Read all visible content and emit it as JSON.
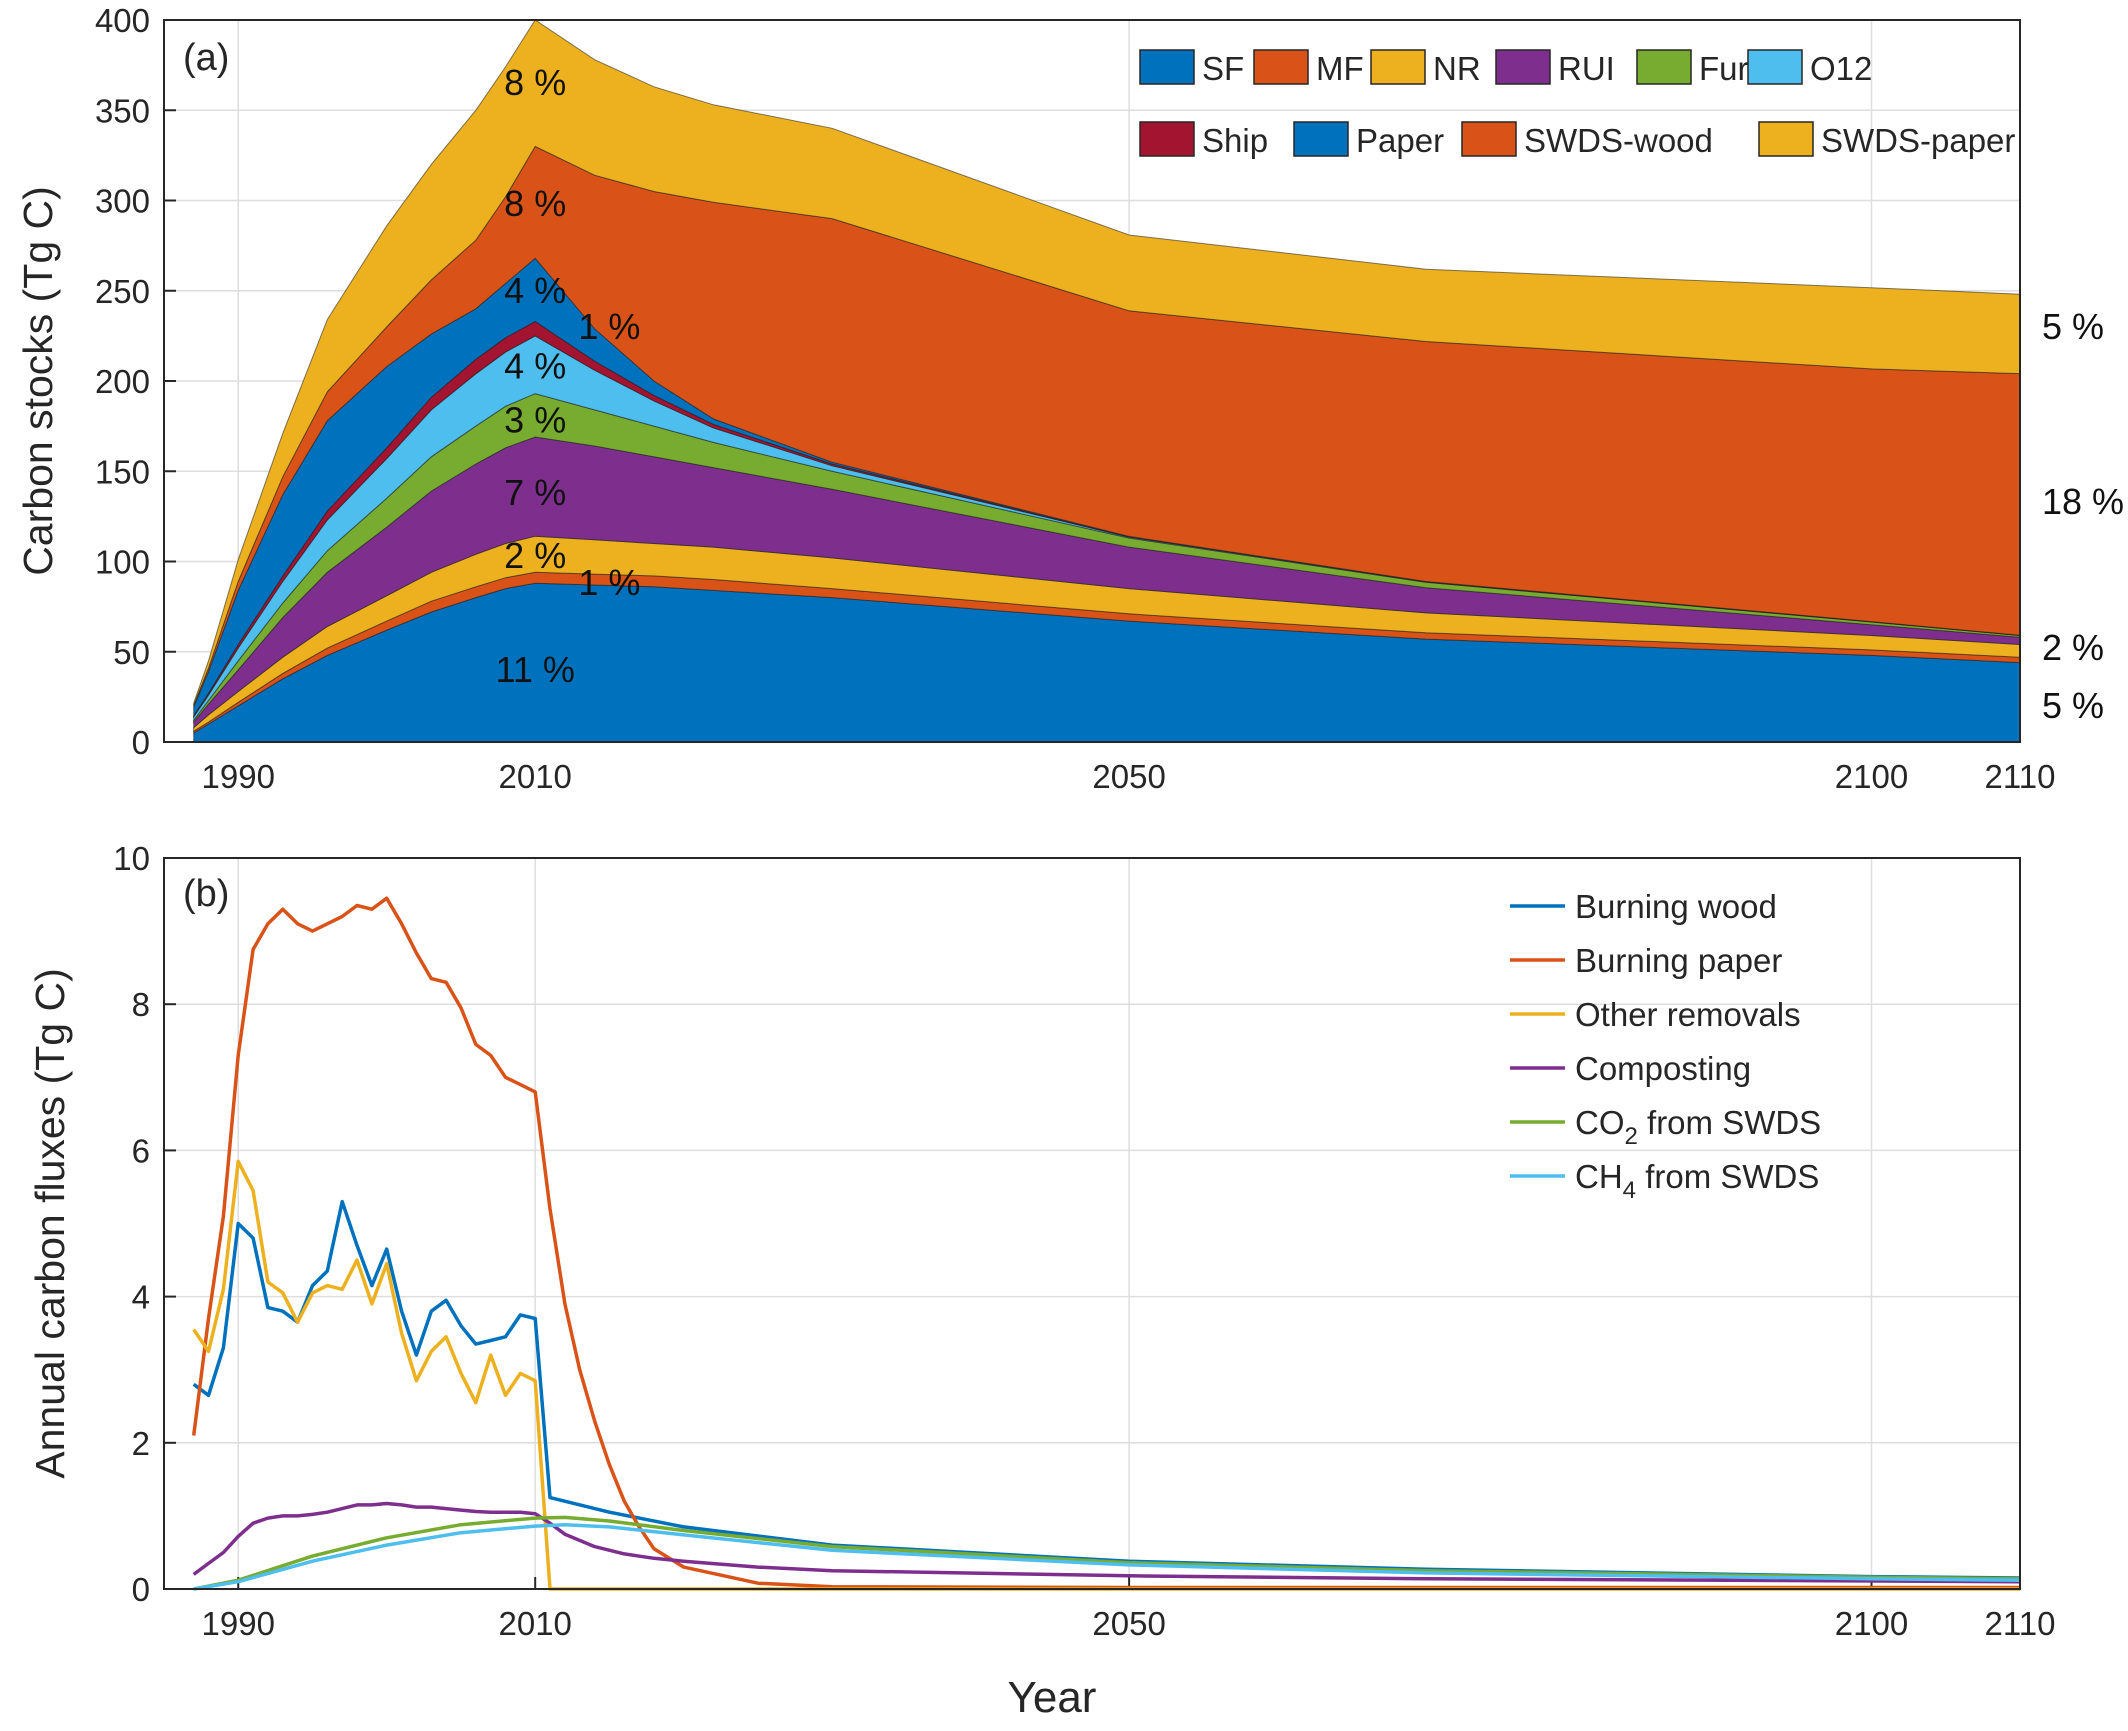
{
  "chart_data": [
    {
      "type": "area",
      "panel_label": "(a)",
      "ylabel": "Carbon stocks (Tg C)",
      "xlabel": "",
      "xlim": [
        1985,
        2110
      ],
      "ylim": [
        0,
        400
      ],
      "xticks": [
        1990,
        2010,
        2050,
        2100,
        2110
      ],
      "yticks": [
        0,
        50,
        100,
        150,
        200,
        250,
        300,
        350,
        400
      ],
      "grid": true,
      "legend_position": "top-right",
      "x": [
        1987,
        1988,
        1990,
        1993,
        1996,
        2000,
        2003,
        2006,
        2008,
        2010,
        2014,
        2018,
        2022,
        2030,
        2050,
        2070,
        2100,
        2110
      ],
      "series": [
        {
          "name": "SF",
          "color": "#0072BD",
          "values": [
            5,
            10,
            20,
            35,
            48,
            62,
            72,
            80,
            85,
            88,
            87,
            86,
            84,
            80,
            67,
            57,
            48,
            44
          ]
        },
        {
          "name": "MF",
          "color": "#D95319",
          "values": [
            1,
            1,
            2,
            3,
            4,
            5,
            6,
            6,
            6,
            6,
            6,
            6,
            6,
            5,
            4,
            3.5,
            3,
            3
          ]
        },
        {
          "name": "NR",
          "color": "#EDB120",
          "values": [
            2,
            4,
            6,
            9,
            12,
            14,
            16,
            18,
            19,
            20,
            19,
            18,
            18,
            17,
            14,
            11,
            8,
            7
          ]
        },
        {
          "name": "RUI",
          "color": "#7E2F8E",
          "values": [
            3,
            6,
            12,
            22,
            30,
            38,
            45,
            50,
            53,
            55,
            52,
            48,
            44,
            38,
            23,
            14,
            6,
            4
          ]
        },
        {
          "name": "Fur",
          "color": "#77AC30",
          "values": [
            1,
            2,
            5,
            8,
            12,
            16,
            19,
            21,
            23,
            24,
            20,
            17,
            14,
            10,
            5,
            3,
            1.5,
            1
          ]
        },
        {
          "name": "O12",
          "color": "#4DBEEE",
          "values": [
            2,
            3,
            7,
            12,
            17,
            22,
            26,
            29,
            30,
            32,
            22,
            14,
            8,
            3,
            0.5,
            0.2,
            0.1,
            0.1
          ]
        },
        {
          "name": "Ship",
          "color": "#A2142F",
          "values": [
            0.5,
            1,
            2,
            3,
            5,
            6,
            7,
            8,
            8,
            8,
            5,
            3,
            2,
            1,
            0.2,
            0.1,
            0.1,
            0
          ]
        },
        {
          "name": "Paper",
          "color": "#0072BD",
          "values": [
            5,
            12,
            30,
            45,
            50,
            45,
            35,
            28,
            30,
            35,
            18,
            8,
            3,
            1,
            0.2,
            0.1,
            0,
            0
          ]
        },
        {
          "name": "SWDS-wood",
          "color": "#D95319",
          "values": [
            1,
            2,
            5,
            10,
            16,
            22,
            30,
            38,
            48,
            62,
            85,
            105,
            120,
            135,
            125,
            133,
            140,
            145
          ]
        },
        {
          "name": "SWDS-paper",
          "color": "#EDB120",
          "values": [
            1,
            4,
            12,
            24,
            40,
            56,
            64,
            72,
            72,
            70,
            64,
            58,
            54,
            50,
            42,
            40,
            45,
            44
          ]
        }
      ],
      "annotations": [
        {
          "text": "8 %",
          "x": 2010,
          "y": 365
        },
        {
          "text": "8 %",
          "x": 2010,
          "y": 298
        },
        {
          "text": "4 %",
          "x": 2010,
          "y": 250
        },
        {
          "text": "1 %",
          "x": 2015,
          "y": 230
        },
        {
          "text": "4 %",
          "x": 2010,
          "y": 208
        },
        {
          "text": "3 %",
          "x": 2010,
          "y": 178
        },
        {
          "text": "7 %",
          "x": 2010,
          "y": 138
        },
        {
          "text": "2 %",
          "x": 2010,
          "y": 103
        },
        {
          "text": "1 %",
          "x": 2015,
          "y": 88
        },
        {
          "text": "11 %",
          "x": 2010,
          "y": 40
        }
      ],
      "right_labels": [
        {
          "text": "5 %",
          "y": 230
        },
        {
          "text": "18 %",
          "y": 133
        },
        {
          "text": "2 %",
          "y": 52
        },
        {
          "text": "5 %",
          "y": 20
        }
      ]
    },
    {
      "type": "line",
      "panel_label": "(b)",
      "ylabel": "Annual carbon fluxes (Tg C)",
      "xlabel": "Year",
      "xlim": [
        1985,
        2110
      ],
      "ylim": [
        0,
        10
      ],
      "xticks": [
        1990,
        2010,
        2050,
        2100,
        2110
      ],
      "yticks": [
        0,
        2,
        4,
        6,
        8,
        10
      ],
      "grid": true,
      "legend_position": "top-right",
      "series": [
        {
          "name": "Burning wood",
          "color": "#0072BD",
          "x": [
            1987,
            1988,
            1989,
            1990,
            1991,
            1992,
            1993,
            1994,
            1995,
            1996,
            1997,
            1998,
            1999,
            2000,
            2001,
            2002,
            2003,
            2004,
            2005,
            2006,
            2007,
            2008,
            2009,
            2010,
            2011,
            2015,
            2020,
            2030,
            2050,
            2070,
            2100,
            2110
          ],
          "values": [
            2.8,
            2.65,
            3.3,
            5.0,
            4.8,
            3.85,
            3.8,
            3.65,
            4.15,
            4.35,
            5.3,
            4.7,
            4.15,
            4.65,
            3.8,
            3.2,
            3.8,
            3.95,
            3.6,
            3.35,
            3.4,
            3.45,
            3.75,
            3.7,
            1.25,
            1.05,
            0.85,
            0.6,
            0.38,
            0.27,
            0.17,
            0.15
          ]
        },
        {
          "name": "Burning paper",
          "color": "#D95319",
          "x": [
            1987,
            1988,
            1989,
            1990,
            1991,
            1992,
            1993,
            1994,
            1995,
            1996,
            1997,
            1998,
            1999,
            2000,
            2001,
            2002,
            2003,
            2004,
            2005,
            2006,
            2007,
            2008,
            2009,
            2010,
            2011,
            2012,
            2013,
            2014,
            2015,
            2016,
            2017,
            2018,
            2020,
            2025,
            2030,
            2050,
            2070,
            2110
          ],
          "values": [
            2.1,
            3.7,
            5.1,
            7.3,
            8.75,
            9.1,
            9.3,
            9.1,
            9.0,
            9.1,
            9.2,
            9.35,
            9.3,
            9.45,
            9.1,
            8.7,
            8.35,
            8.3,
            7.95,
            7.45,
            7.3,
            7.0,
            6.9,
            6.8,
            5.2,
            3.9,
            3.0,
            2.3,
            1.7,
            1.2,
            0.85,
            0.55,
            0.3,
            0.08,
            0.03,
            0.02,
            0.02,
            0.02
          ]
        },
        {
          "name": "Other removals",
          "color": "#EDB120",
          "x": [
            1987,
            1988,
            1989,
            1990,
            1991,
            1992,
            1993,
            1994,
            1995,
            1996,
            1997,
            1998,
            1999,
            2000,
            2001,
            2002,
            2003,
            2004,
            2005,
            2006,
            2007,
            2008,
            2009,
            2010,
            2011,
            2110
          ],
          "values": [
            3.55,
            3.25,
            4.1,
            5.85,
            5.45,
            4.2,
            4.05,
            3.65,
            4.05,
            4.15,
            4.1,
            4.5,
            3.9,
            4.45,
            3.5,
            2.85,
            3.25,
            3.45,
            2.95,
            2.55,
            3.2,
            2.65,
            2.95,
            2.85,
            0,
            0
          ]
        },
        {
          "name": "Composting",
          "color": "#7E2F8E",
          "x": [
            1987,
            1988,
            1989,
            1990,
            1991,
            1992,
            1993,
            1994,
            1995,
            1996,
            1997,
            1998,
            1999,
            2000,
            2001,
            2002,
            2003,
            2004,
            2005,
            2006,
            2007,
            2008,
            2009,
            2010,
            2011,
            2012,
            2014,
            2016,
            2018,
            2020,
            2025,
            2030,
            2050,
            2070,
            2110
          ],
          "values": [
            0.2,
            0.35,
            0.5,
            0.72,
            0.9,
            0.97,
            1.0,
            1.0,
            1.02,
            1.05,
            1.1,
            1.15,
            1.15,
            1.17,
            1.15,
            1.12,
            1.12,
            1.1,
            1.08,
            1.06,
            1.05,
            1.05,
            1.05,
            1.03,
            0.9,
            0.75,
            0.58,
            0.48,
            0.42,
            0.38,
            0.3,
            0.25,
            0.18,
            0.14,
            0.1
          ]
        },
        {
          "name": "CO2 from SWDS",
          "color": "#77AC30",
          "x": [
            1987,
            1990,
            1995,
            2000,
            2005,
            2010,
            2012,
            2015,
            2020,
            2030,
            2050,
            2070,
            2100,
            2110
          ],
          "values": [
            0,
            0.12,
            0.45,
            0.7,
            0.88,
            0.97,
            0.98,
            0.93,
            0.8,
            0.58,
            0.36,
            0.25,
            0.16,
            0.14
          ]
        },
        {
          "name": "CH4 from SWDS",
          "color": "#4DBEEE",
          "x": [
            1987,
            1990,
            1995,
            2000,
            2005,
            2010,
            2012,
            2015,
            2020,
            2030,
            2050,
            2070,
            2100,
            2110
          ],
          "values": [
            0,
            0.1,
            0.38,
            0.6,
            0.77,
            0.86,
            0.88,
            0.85,
            0.74,
            0.53,
            0.33,
            0.22,
            0.14,
            0.12
          ]
        }
      ]
    }
  ]
}
